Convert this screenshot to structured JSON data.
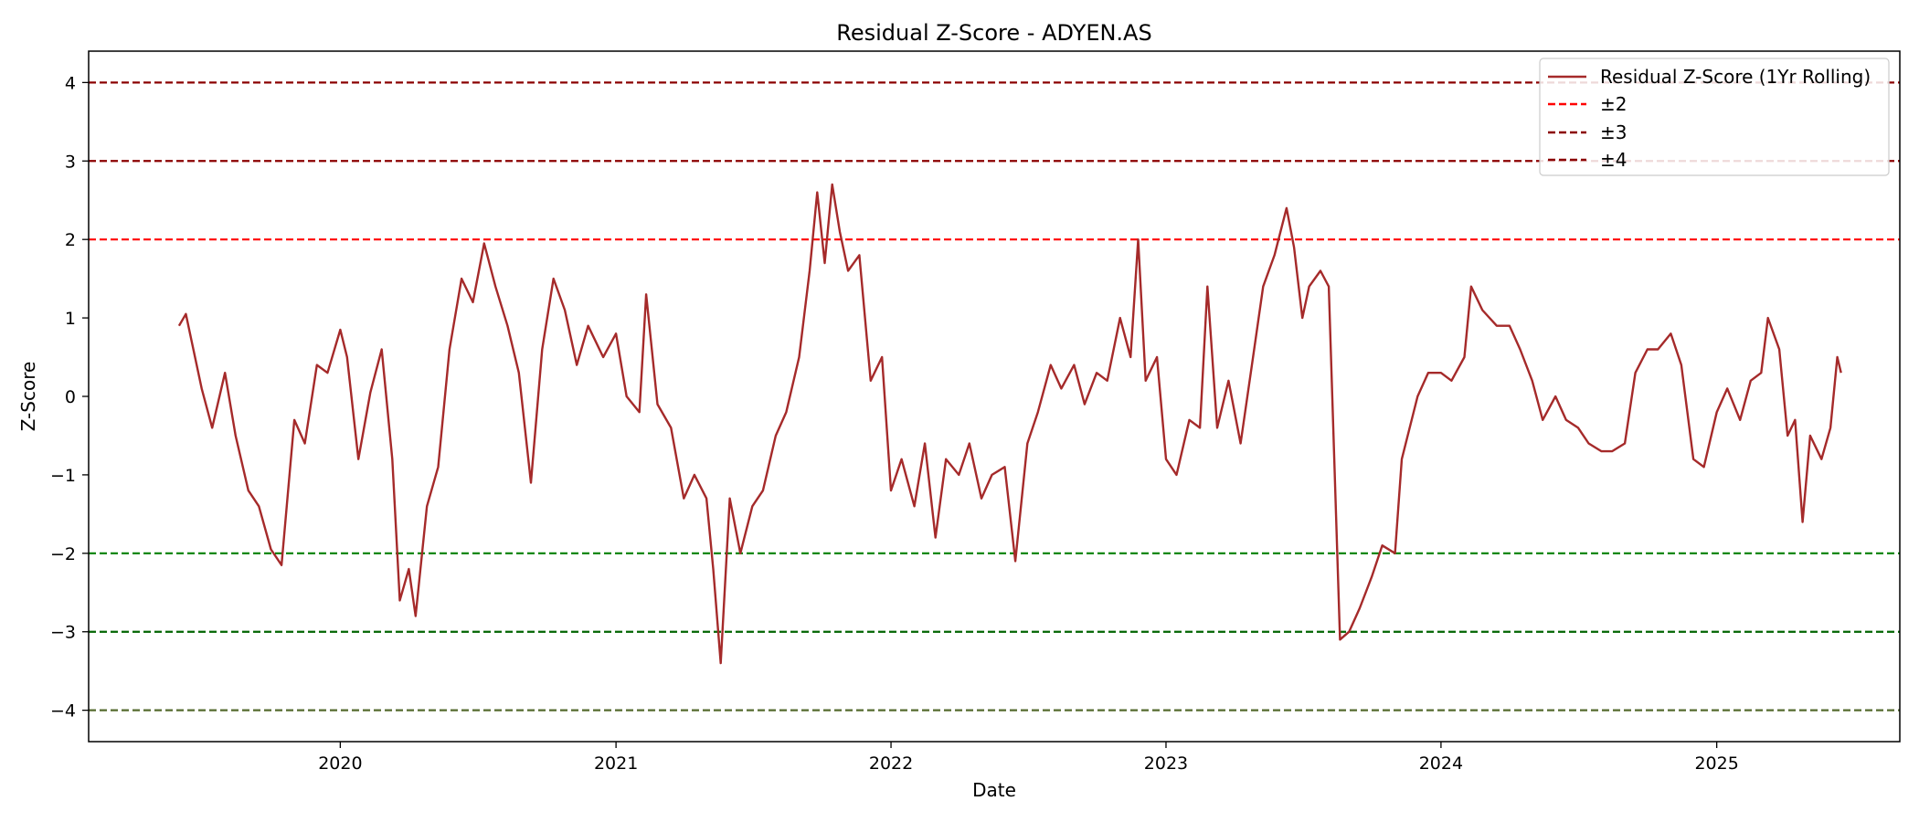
{
  "chart_data": {
    "type": "line",
    "title": "Residual Z-Score - ADYEN.AS",
    "xlabel": "Date",
    "ylabel": "Z-Score",
    "xlim": [
      "2019-02-01",
      "2025-09-01"
    ],
    "ylim": [
      -4.4,
      4.4
    ],
    "x_ticks": [
      "2020",
      "2021",
      "2022",
      "2023",
      "2024",
      "2025"
    ],
    "y_ticks": [
      "−4",
      "−3",
      "−2",
      "−1",
      "0",
      "1",
      "2",
      "3",
      "4"
    ],
    "grid": false,
    "legend_position": "top-right",
    "series": [
      {
        "name": "Residual Z-Score (1Yr Rolling)",
        "color": "#a52a2a",
        "points": [
          [
            "2019-06-01",
            0.9
          ],
          [
            "2019-06-10",
            1.05
          ],
          [
            "2019-06-20",
            0.6
          ],
          [
            "2019-07-01",
            0.1
          ],
          [
            "2019-07-15",
            -0.4
          ],
          [
            "2019-08-01",
            0.3
          ],
          [
            "2019-08-15",
            -0.5
          ],
          [
            "2019-09-01",
            -1.2
          ],
          [
            "2019-09-15",
            -1.4
          ],
          [
            "2019-10-01",
            -1.95
          ],
          [
            "2019-10-15",
            -2.15
          ],
          [
            "2019-11-01",
            -0.3
          ],
          [
            "2019-11-15",
            -0.6
          ],
          [
            "2019-12-01",
            0.4
          ],
          [
            "2019-12-15",
            0.3
          ],
          [
            "2020-01-01",
            0.85
          ],
          [
            "2020-01-10",
            0.5
          ],
          [
            "2020-01-25",
            -0.8
          ],
          [
            "2020-02-10",
            0.05
          ],
          [
            "2020-02-25",
            0.6
          ],
          [
            "2020-03-10",
            -0.8
          ],
          [
            "2020-03-20",
            -2.6
          ],
          [
            "2020-04-01",
            -2.2
          ],
          [
            "2020-04-10",
            -2.8
          ],
          [
            "2020-04-25",
            -1.4
          ],
          [
            "2020-05-10",
            -0.9
          ],
          [
            "2020-05-25",
            0.6
          ],
          [
            "2020-06-10",
            1.5
          ],
          [
            "2020-06-25",
            1.2
          ],
          [
            "2020-07-10",
            1.95
          ],
          [
            "2020-07-25",
            1.4
          ],
          [
            "2020-08-10",
            0.9
          ],
          [
            "2020-08-25",
            0.3
          ],
          [
            "2020-09-10",
            -1.1
          ],
          [
            "2020-09-25",
            0.6
          ],
          [
            "2020-10-10",
            1.5
          ],
          [
            "2020-10-25",
            1.1
          ],
          [
            "2020-11-10",
            0.4
          ],
          [
            "2020-11-25",
            0.9
          ],
          [
            "2020-12-15",
            0.5
          ],
          [
            "2021-01-01",
            0.8
          ],
          [
            "2021-01-15",
            0.0
          ],
          [
            "2021-02-01",
            -0.2
          ],
          [
            "2021-02-10",
            1.3
          ],
          [
            "2021-02-25",
            -0.1
          ],
          [
            "2021-03-15",
            -0.4
          ],
          [
            "2021-04-01",
            -1.3
          ],
          [
            "2021-04-15",
            -1.0
          ],
          [
            "2021-05-01",
            -1.3
          ],
          [
            "2021-05-10",
            -2.2
          ],
          [
            "2021-05-20",
            -3.4
          ],
          [
            "2021-06-01",
            -1.3
          ],
          [
            "2021-06-15",
            -2.0
          ],
          [
            "2021-07-01",
            -1.4
          ],
          [
            "2021-07-15",
            -1.2
          ],
          [
            "2021-08-01",
            -0.5
          ],
          [
            "2021-08-15",
            -0.2
          ],
          [
            "2021-09-01",
            0.5
          ],
          [
            "2021-09-15",
            1.6
          ],
          [
            "2021-09-25",
            2.6
          ],
          [
            "2021-10-05",
            1.7
          ],
          [
            "2021-10-15",
            2.7
          ],
          [
            "2021-10-25",
            2.1
          ],
          [
            "2021-11-05",
            1.6
          ],
          [
            "2021-11-20",
            1.8
          ],
          [
            "2021-12-05",
            0.2
          ],
          [
            "2021-12-20",
            0.5
          ],
          [
            "2022-01-01",
            -1.2
          ],
          [
            "2022-01-15",
            -0.8
          ],
          [
            "2022-02-01",
            -1.4
          ],
          [
            "2022-02-15",
            -0.6
          ],
          [
            "2022-03-01",
            -1.8
          ],
          [
            "2022-03-15",
            -0.8
          ],
          [
            "2022-04-01",
            -1.0
          ],
          [
            "2022-04-15",
            -0.6
          ],
          [
            "2022-05-01",
            -1.3
          ],
          [
            "2022-05-15",
            -1.0
          ],
          [
            "2022-06-01",
            -0.9
          ],
          [
            "2022-06-15",
            -2.1
          ],
          [
            "2022-07-01",
            -0.6
          ],
          [
            "2022-07-15",
            -0.2
          ],
          [
            "2022-08-01",
            0.4
          ],
          [
            "2022-08-15",
            0.1
          ],
          [
            "2022-09-01",
            0.4
          ],
          [
            "2022-09-15",
            -0.1
          ],
          [
            "2022-10-01",
            0.3
          ],
          [
            "2022-10-15",
            0.2
          ],
          [
            "2022-11-01",
            1.0
          ],
          [
            "2022-11-15",
            0.5
          ],
          [
            "2022-11-25",
            2.0
          ],
          [
            "2022-12-05",
            0.2
          ],
          [
            "2022-12-20",
            0.5
          ],
          [
            "2023-01-01",
            -0.8
          ],
          [
            "2023-01-15",
            -1.0
          ],
          [
            "2023-02-01",
            -0.3
          ],
          [
            "2023-02-15",
            -0.4
          ],
          [
            "2023-02-25",
            1.4
          ],
          [
            "2023-03-10",
            -0.4
          ],
          [
            "2023-03-25",
            0.2
          ],
          [
            "2023-04-10",
            -0.6
          ],
          [
            "2023-04-25",
            0.4
          ],
          [
            "2023-05-10",
            1.4
          ],
          [
            "2023-05-25",
            1.8
          ],
          [
            "2023-06-10",
            2.4
          ],
          [
            "2023-06-20",
            1.9
          ],
          [
            "2023-07-01",
            1.0
          ],
          [
            "2023-07-10",
            1.4
          ],
          [
            "2023-07-25",
            1.6
          ],
          [
            "2023-08-05",
            1.4
          ],
          [
            "2023-08-20",
            -3.1
          ],
          [
            "2023-09-01",
            -3.0
          ],
          [
            "2023-09-15",
            -2.7
          ],
          [
            "2023-10-01",
            -2.3
          ],
          [
            "2023-10-15",
            -1.9
          ],
          [
            "2023-11-01",
            -2.0
          ],
          [
            "2023-11-10",
            -0.8
          ],
          [
            "2023-12-01",
            0.0
          ],
          [
            "2023-12-15",
            0.3
          ],
          [
            "2024-01-01",
            0.3
          ],
          [
            "2024-01-15",
            0.2
          ],
          [
            "2024-02-01",
            0.5
          ],
          [
            "2024-02-10",
            1.4
          ],
          [
            "2024-02-25",
            1.1
          ],
          [
            "2024-03-15",
            0.9
          ],
          [
            "2024-04-01",
            0.9
          ],
          [
            "2024-04-15",
            0.6
          ],
          [
            "2024-05-01",
            0.2
          ],
          [
            "2024-05-15",
            -0.3
          ],
          [
            "2024-06-01",
            0.0
          ],
          [
            "2024-06-15",
            -0.3
          ],
          [
            "2024-07-01",
            -0.4
          ],
          [
            "2024-07-15",
            -0.6
          ],
          [
            "2024-08-01",
            -0.7
          ],
          [
            "2024-08-15",
            -0.7
          ],
          [
            "2024-09-01",
            -0.6
          ],
          [
            "2024-09-15",
            0.3
          ],
          [
            "2024-10-01",
            0.6
          ],
          [
            "2024-10-15",
            0.6
          ],
          [
            "2024-11-01",
            0.8
          ],
          [
            "2024-11-15",
            0.4
          ],
          [
            "2024-12-01",
            -0.8
          ],
          [
            "2024-12-15",
            -0.9
          ],
          [
            "2025-01-01",
            -0.2
          ],
          [
            "2025-01-15",
            0.1
          ],
          [
            "2025-02-01",
            -0.3
          ],
          [
            "2025-02-15",
            0.2
          ],
          [
            "2025-03-01",
            0.3
          ],
          [
            "2025-03-10",
            1.0
          ],
          [
            "2025-03-25",
            0.6
          ],
          [
            "2025-04-05",
            -0.5
          ],
          [
            "2025-04-15",
            -0.3
          ],
          [
            "2025-04-25",
            -1.6
          ],
          [
            "2025-05-05",
            -0.5
          ],
          [
            "2025-05-20",
            -0.8
          ],
          [
            "2025-06-01",
            -0.4
          ],
          [
            "2025-06-10",
            0.5
          ],
          [
            "2025-06-15",
            0.3
          ]
        ]
      }
    ],
    "reference_lines": [
      {
        "name": "±2",
        "y": 2,
        "color": "#ff0000"
      },
      {
        "name": "±3",
        "y": 3,
        "color": "#8b0000"
      },
      {
        "name": "±4",
        "y": 4,
        "color": "#8b0000"
      },
      {
        "y": -2,
        "color": "#008000"
      },
      {
        "y": -3,
        "color": "#006400"
      },
      {
        "y": -4,
        "color": "#556b2f"
      }
    ]
  }
}
